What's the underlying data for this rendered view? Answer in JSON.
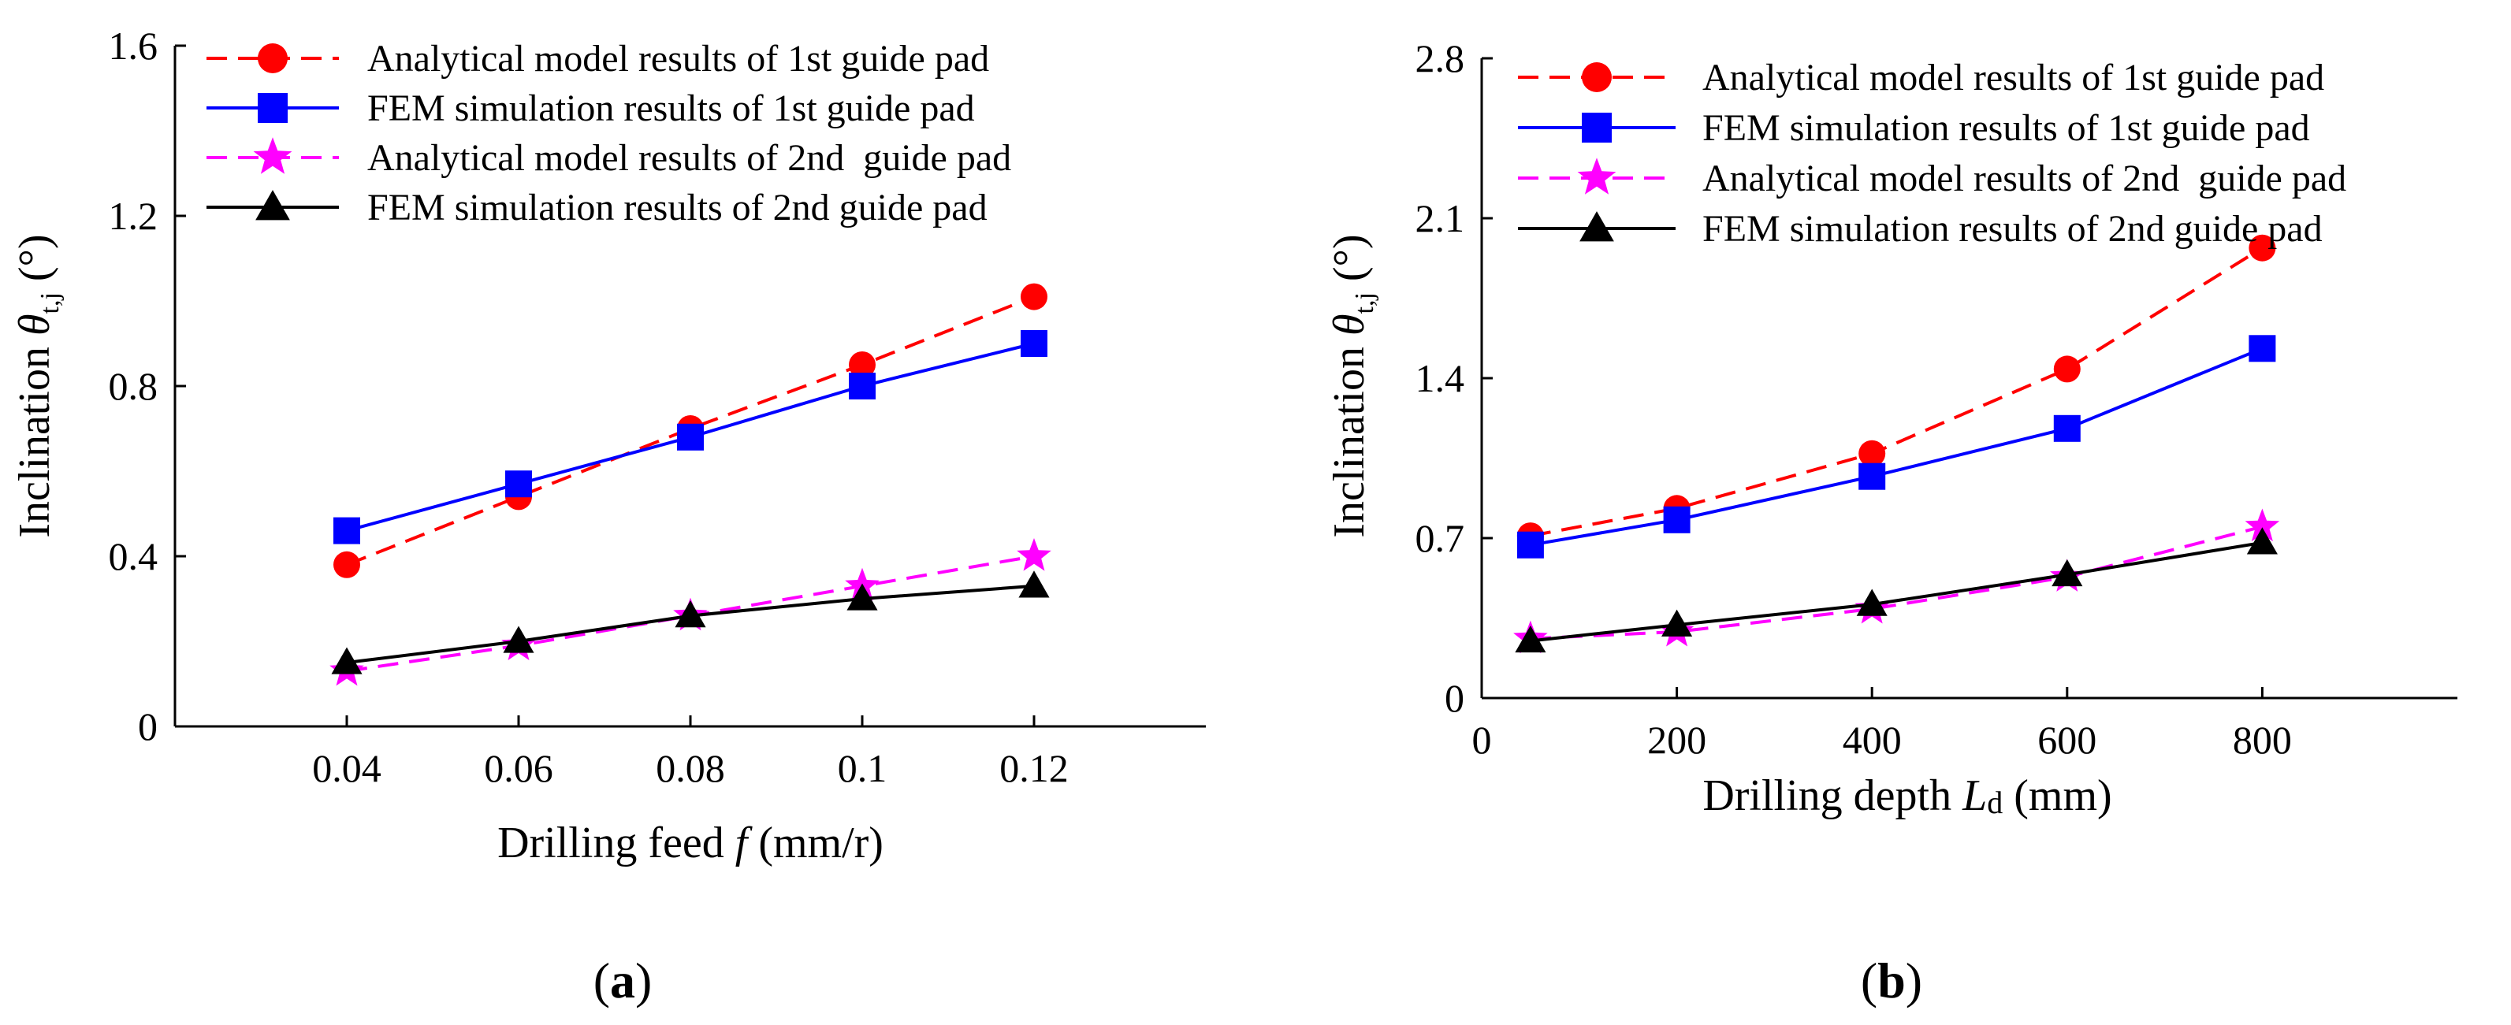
{
  "chart_data": [
    {
      "type": "line",
      "panel_label": "a",
      "xlabel": "Drilling feed",
      "xlabel_symbol": "f",
      "xlabel_unit": "(mm/r)",
      "ylabel": "Inclination",
      "ylabel_symbol": "θ",
      "ylabel_subscript": "t,j",
      "ylabel_unit": "(°)",
      "xlim": [
        0.02,
        0.14
      ],
      "ylim": [
        0,
        1.6
      ],
      "xticks": [
        0.04,
        0.06,
        0.08,
        0.1,
        0.12
      ],
      "xtick_labels": [
        "0.04",
        "0.06",
        "0.08",
        "0.1",
        "0.12"
      ],
      "yticks": [
        0,
        0.4,
        0.8,
        1.2,
        1.6
      ],
      "ytick_labels": [
        "0",
        "0.4",
        "0.8",
        "1.2",
        "1.6"
      ],
      "legend_position": "top",
      "x": [
        0.04,
        0.06,
        0.08,
        0.1,
        0.12
      ],
      "series": [
        {
          "name": "Analytical model results of 1st guide pad",
          "color": "#ff0000",
          "dash": "dashed",
          "marker": "circle",
          "values": [
            0.38,
            0.54,
            0.7,
            0.85,
            1.01
          ]
        },
        {
          "name": "FEM simulation results of 1st guide pad",
          "color": "#0000ff",
          "dash": "solid",
          "marker": "square",
          "values": [
            0.46,
            0.57,
            0.68,
            0.8,
            0.9
          ]
        },
        {
          "name": "Analytical model results of 2nd  guide pad",
          "color": "#ff00ff",
          "dash": "dashed",
          "marker": "star",
          "values": [
            0.13,
            0.19,
            0.26,
            0.33,
            0.4
          ]
        },
        {
          "name": "FEM simulation results of 2nd guide pad",
          "color": "#000000",
          "dash": "solid",
          "marker": "triangle",
          "values": [
            0.15,
            0.2,
            0.26,
            0.3,
            0.33
          ]
        }
      ]
    },
    {
      "type": "line",
      "panel_label": "b",
      "xlabel": "Drilling depth",
      "xlabel_symbol": "L",
      "xlabel_subscript": "d",
      "xlabel_unit": "(mm)",
      "ylabel": "Inclination",
      "ylabel_symbol": "θ",
      "ylabel_subscript": "t,j",
      "ylabel_unit": "(°)",
      "xlim": [
        0,
        1000
      ],
      "ylim": [
        0,
        2.8
      ],
      "xticks": [
        0,
        200,
        400,
        600,
        800
      ],
      "xtick_labels": [
        "0",
        "200",
        "400",
        "600",
        "800"
      ],
      "yticks": [
        0,
        0.7,
        1.4,
        2.1,
        2.8
      ],
      "ytick_labels": [
        "0",
        "0.7",
        "1.4",
        "2.1",
        "2.8"
      ],
      "legend_position": "top",
      "x": [
        50,
        200,
        400,
        600,
        800
      ],
      "series": [
        {
          "name": "Analytical model results of 1st guide pad",
          "color": "#ff0000",
          "dash": "dashed",
          "marker": "circle",
          "values": [
            0.71,
            0.83,
            1.07,
            1.44,
            1.97
          ]
        },
        {
          "name": "FEM simulation results of 1st guide pad",
          "color": "#0000ff",
          "dash": "solid",
          "marker": "square",
          "values": [
            0.67,
            0.78,
            0.97,
            1.18,
            1.53
          ]
        },
        {
          "name": "Analytical model results of 2nd  guide pad",
          "color": "#ff00ff",
          "dash": "dashed",
          "marker": "star",
          "values": [
            0.26,
            0.29,
            0.39,
            0.53,
            0.75
          ]
        },
        {
          "name": "FEM simulation results of 2nd guide pad",
          "color": "#000000",
          "dash": "solid",
          "marker": "triangle",
          "values": [
            0.25,
            0.32,
            0.41,
            0.54,
            0.68
          ]
        }
      ]
    }
  ]
}
